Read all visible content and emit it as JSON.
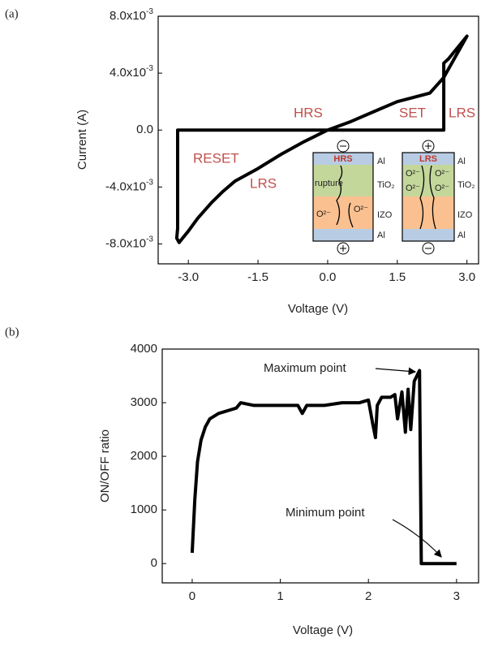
{
  "chart_data": [
    {
      "type": "line",
      "panel_label": "(a)",
      "x_label": "Voltage (V)",
      "y_label": "Current (A)",
      "xlim": [
        -3.65,
        3.25
      ],
      "ylim": [
        -0.0094,
        0.008
      ],
      "xticks": [
        {
          "value": -3,
          "label": "-3.0"
        },
        -1.5,
        {
          "value": 0,
          "label": "0.0"
        },
        1.5,
        {
          "value": 3,
          "label": "3.0"
        }
      ],
      "yticks": [
        {
          "value": 0.008,
          "label": "8.0x10",
          "exponent": "-3"
        },
        {
          "value": 0.004,
          "label": "4.0x10",
          "exponent": "-3"
        },
        {
          "value": 0,
          "label": "0.0"
        },
        {
          "value": -0.004,
          "label": "-4.0x10",
          "exponent": "-3"
        },
        {
          "value": -0.008,
          "label": "-8.0x10",
          "exponent": "-3"
        }
      ],
      "grid": false,
      "series": [
        {
          "color": "#000000",
          "x": [
            0,
            1.0,
            2.0,
            2.5,
            2.5,
            2.6,
            2.8,
            3.0,
            2.5,
            2.2,
            1.5,
            1.0,
            0.5,
            0,
            -0.5,
            -1.0,
            -1.5,
            -2.0,
            -2.25,
            -2.5,
            -2.8,
            -3.0,
            -3.2,
            -3.25,
            -3.23,
            -3.23,
            -2.0,
            -1.0,
            0
          ],
          "values": [
            0,
            0,
            0,
            0,
            0.0047,
            0.005,
            0.0058,
            0.0066,
            0.0037,
            0.0026,
            0.002,
            0.0013,
            0.0006,
            0,
            -0.0008,
            -0.0017,
            -0.0027,
            -0.0036,
            -0.0043,
            -0.0051,
            -0.0062,
            -0.0071,
            -0.0079,
            -0.0076,
            -0.0069,
            0,
            0,
            0,
            0
          ]
        }
      ],
      "annotations": [
        "HRS",
        "SET",
        "LRS",
        "RESET",
        "LRS"
      ],
      "inset": {
        "devices": [
          {
            "state": "HRS",
            "layers": [
              "Al",
              "TiO₂",
              "IZO",
              "Al"
            ],
            "labels": [
              "rupture",
              "O²⁻",
              "O²⁻"
            ]
          },
          {
            "state": "LRS",
            "layers": [
              "Al",
              "TiO₂",
              "IZO",
              "Al"
            ],
            "labels": [
              "O²⁻",
              "O²⁻",
              "O²⁻",
              "O²⁻"
            ]
          }
        ]
      }
    },
    {
      "type": "line",
      "panel_label": "(b)",
      "x_label": "Voltage (V)",
      "y_label": "ON/OFF ratio",
      "xlim": [
        -0.34,
        3.25
      ],
      "ylim": [
        -360,
        4000
      ],
      "xticks": [
        0,
        1,
        2,
        3
      ],
      "yticks": [
        0,
        1000,
        2000,
        3000,
        4000
      ],
      "grid": false,
      "series": [
        {
          "color": "#000000",
          "x": [
            0,
            0.03,
            0.06,
            0.1,
            0.15,
            0.2,
            0.3,
            0.4,
            0.5,
            0.55,
            0.7,
            0.9,
            1.0,
            1.2,
            1.25,
            1.3,
            1.5,
            1.7,
            1.9,
            2.0,
            2.05,
            2.08,
            2.1,
            2.15,
            2.25,
            2.3,
            2.33,
            2.38,
            2.42,
            2.45,
            2.48,
            2.52,
            2.55,
            2.58,
            2.6,
            2.8,
            3.0
          ],
          "values": [
            200,
            1200,
            1900,
            2300,
            2550,
            2700,
            2800,
            2850,
            2900,
            3000,
            2950,
            2950,
            2950,
            2950,
            2800,
            2950,
            2950,
            3000,
            3000,
            3050,
            2600,
            2350,
            2950,
            3100,
            3100,
            3150,
            2700,
            3200,
            2450,
            3250,
            2500,
            3400,
            3500,
            3600,
            0,
            0,
            0
          ]
        }
      ],
      "annotations": [
        "Maximum point",
        "Minimum point"
      ]
    }
  ]
}
